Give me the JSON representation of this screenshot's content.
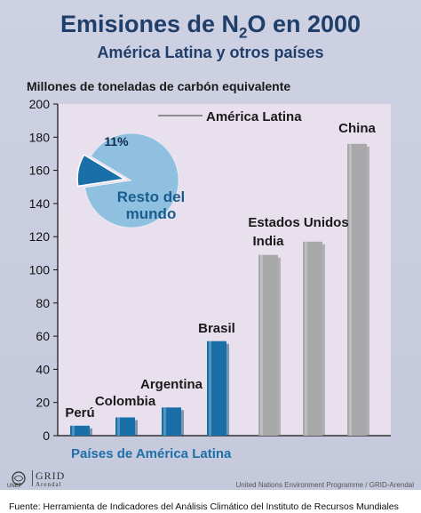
{
  "title": "Emisiones de N",
  "title_sub": "2",
  "title_end": "O en 2000",
  "subtitle": "América Latina y otros países",
  "y_unit_label": "Millones de toneladas de carbón equivalente",
  "latam_caption": "Países de América Latina",
  "logos": {
    "unep": "UNEP",
    "grid": "GRID",
    "grid_sub": "Arendal"
  },
  "credit": "United Nations Environment Programme / GRID-Arendal",
  "source": "Fuente: Herramienta de Indicadores del Análisis Climático del Instituto de Recursos Mundiales",
  "colors": {
    "latam_bar": "#1a6fa8",
    "other_bar": "#a9a9ab",
    "plot_bg": "#e9e0ee",
    "pie_rest": "#8fc0e0",
    "pie_slice": "#1a6fa8",
    "title": "#1f3e6a"
  },
  "chart_data": [
    {
      "type": "bar",
      "categories": [
        "Perú",
        "Colombia",
        "Argentina",
        "Brasil",
        "India",
        "Estados Unidos",
        "China"
      ],
      "series": [
        {
          "values": [
            6,
            11,
            17,
            57,
            109,
            117,
            176
          ]
        }
      ],
      "bar_groups": [
        "latam",
        "latam",
        "latam",
        "latam",
        "other",
        "other",
        "other"
      ],
      "ylabel": "Millones de toneladas de carbón equivalente",
      "ylim": [
        0,
        200
      ],
      "yticks": [
        0,
        20,
        40,
        60,
        80,
        100,
        120,
        140,
        160,
        180,
        200
      ],
      "grid": false
    },
    {
      "type": "pie",
      "labels": [
        "América Latina",
        "Resto del mundo"
      ],
      "values": [
        11,
        89
      ],
      "slice_label": "11%",
      "rest_label_line1": "Resto del",
      "rest_label_line2": "mundo"
    }
  ]
}
